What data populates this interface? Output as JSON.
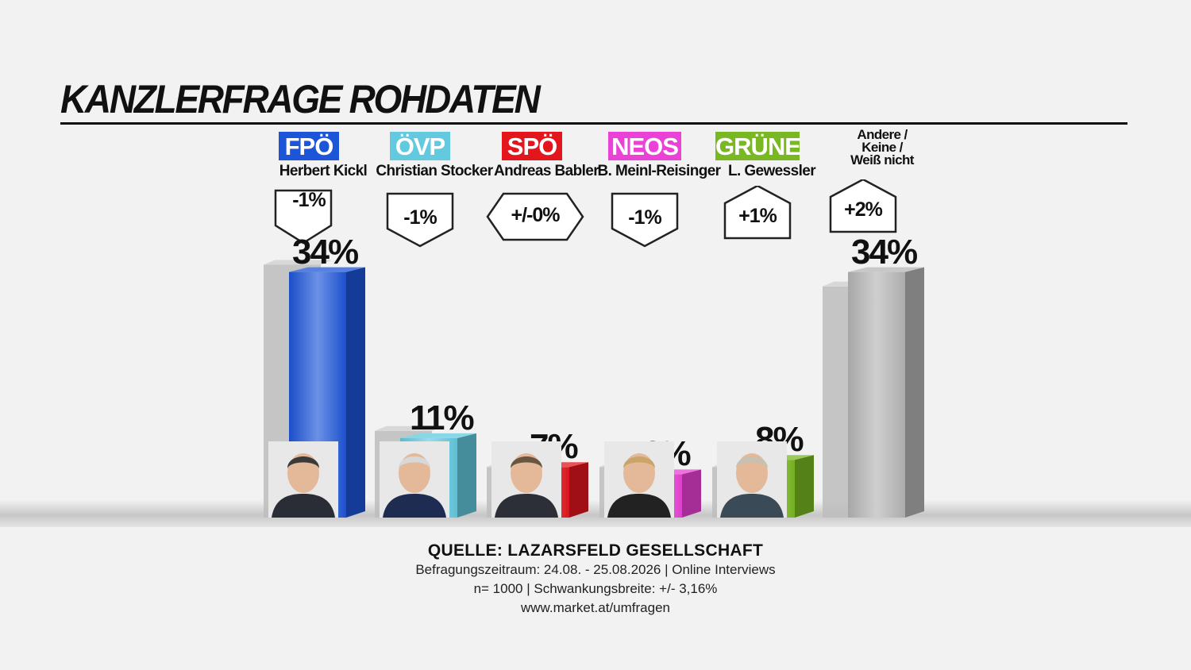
{
  "title": "KANZLERFRAGE ROHDATEN",
  "chart_data": {
    "type": "bar",
    "categories": [
      "FPÖ",
      "ÖVP",
      "SPÖ",
      "NEOS",
      "GRÜNE",
      "Andere / Keine / Weiß nicht"
    ],
    "candidates": [
      "Herbert Kickl",
      "Christian Stocker",
      "Andreas Babler",
      "B. Meinl-Reisinger",
      "L. Gewessler",
      ""
    ],
    "values": [
      34,
      11,
      7,
      6,
      8,
      34
    ],
    "value_labels": [
      "34%",
      "11%",
      "7%",
      "6%",
      "8%",
      "34%"
    ],
    "previous_values": [
      35,
      12,
      7,
      7,
      7,
      32
    ],
    "changes": [
      "-1%",
      "-1%",
      "+/-0%",
      "-1%",
      "+1%",
      "+2%"
    ],
    "change_direction": [
      "down",
      "down",
      "flat",
      "down",
      "up",
      "up"
    ],
    "colors": [
      "#1d55d8",
      "#62c9de",
      "#e3161e",
      "#ea41d6",
      "#7ab823",
      "#b5b5b5"
    ],
    "other_label_lines": [
      "Andere /",
      "Keine /",
      "Weiß nicht"
    ]
  },
  "source": {
    "title": "QUELLE: LAZARSFELD GESELLSCHAFT",
    "line1": "Befragungszeitraum: 24.08. - 25.08.2026 | Online Interviews",
    "line2": "n= 1000 | Schwankungsbreite: +/- 3,16%",
    "line3": "www.market.at/umfragen"
  }
}
